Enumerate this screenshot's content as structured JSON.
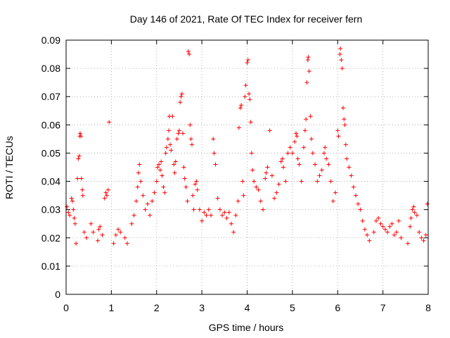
{
  "chart_data": {
    "type": "scatter",
    "title": "Day 146 of 2021, Rate Of TEC Index for receiver fern",
    "xlabel": "GPS time / hours",
    "ylabel": "ROTI / TECUs",
    "xlim": [
      0,
      8
    ],
    "ylim": [
      0,
      0.09
    ],
    "xticks": [
      "0",
      "1",
      "2",
      "3",
      "4",
      "5",
      "6",
      "7",
      "8"
    ],
    "yticks": [
      "0",
      "0.01",
      "0.02",
      "0.03",
      "0.04",
      "0.05",
      "0.06",
      "0.07",
      "0.08",
      "0.09"
    ],
    "grid": true,
    "legend": "none",
    "marker": "+",
    "series_color": "#ff0000",
    "series": [
      {
        "points": [
          [
            0.02,
            0.031
          ],
          [
            0.05,
            0.029
          ],
          [
            0.08,
            0.028
          ],
          [
            0.12,
            0.034
          ],
          [
            0.14,
            0.033
          ],
          [
            0.16,
            0.03
          ],
          [
            0.18,
            0.027
          ],
          [
            0.2,
            0.025
          ],
          [
            0.22,
            0.018
          ],
          [
            0.25,
            0.041
          ],
          [
            0.27,
            0.048
          ],
          [
            0.29,
            0.049
          ],
          [
            0.3,
            0.056
          ],
          [
            0.31,
            0.057
          ],
          [
            0.33,
            0.056
          ],
          [
            0.34,
            0.041
          ],
          [
            0.36,
            0.037
          ],
          [
            0.37,
            0.035
          ],
          [
            0.4,
            0.022
          ],
          [
            0.45,
            0.02
          ],
          [
            0.55,
            0.025
          ],
          [
            0.6,
            0.022
          ],
          [
            0.7,
            0.019
          ],
          [
            0.72,
            0.023
          ],
          [
            0.75,
            0.024
          ],
          [
            0.8,
            0.021
          ],
          [
            0.85,
            0.034
          ],
          [
            0.88,
            0.036
          ],
          [
            0.9,
            0.035
          ],
          [
            0.93,
            0.037
          ],
          [
            0.95,
            0.061
          ],
          [
            1.05,
            0.018
          ],
          [
            1.1,
            0.021
          ],
          [
            1.15,
            0.023
          ],
          [
            1.2,
            0.022
          ],
          [
            1.3,
            0.02
          ],
          [
            1.35,
            0.018
          ],
          [
            1.45,
            0.025
          ],
          [
            1.5,
            0.028
          ],
          [
            1.55,
            0.033
          ],
          [
            1.58,
            0.038
          ],
          [
            1.6,
            0.043
          ],
          [
            1.62,
            0.046
          ],
          [
            1.65,
            0.04
          ],
          [
            1.7,
            0.035
          ],
          [
            1.75,
            0.03
          ],
          [
            1.8,
            0.032
          ],
          [
            1.85,
            0.028
          ],
          [
            1.9,
            0.033
          ],
          [
            1.95,
            0.036
          ],
          [
            2.0,
            0.04
          ],
          [
            2.02,
            0.045
          ],
          [
            2.05,
            0.046
          ],
          [
            2.08,
            0.044
          ],
          [
            2.1,
            0.047
          ],
          [
            2.12,
            0.042
          ],
          [
            2.15,
            0.038
          ],
          [
            2.18,
            0.036
          ],
          [
            2.2,
            0.05
          ],
          [
            2.22,
            0.052
          ],
          [
            2.25,
            0.055
          ],
          [
            2.27,
            0.058
          ],
          [
            2.28,
            0.063
          ],
          [
            2.3,
            0.053
          ],
          [
            2.32,
            0.051
          ],
          [
            2.35,
            0.063
          ],
          [
            2.38,
            0.046
          ],
          [
            2.4,
            0.043
          ],
          [
            2.42,
            0.047
          ],
          [
            2.45,
            0.055
          ],
          [
            2.48,
            0.057
          ],
          [
            2.5,
            0.058
          ],
          [
            2.52,
            0.068
          ],
          [
            2.54,
            0.07
          ],
          [
            2.56,
            0.071
          ],
          [
            2.58,
            0.057
          ],
          [
            2.6,
            0.045
          ],
          [
            2.62,
            0.041
          ],
          [
            2.65,
            0.038
          ],
          [
            2.68,
            0.033
          ],
          [
            2.7,
            0.086
          ],
          [
            2.72,
            0.085
          ],
          [
            2.74,
            0.06
          ],
          [
            2.76,
            0.055
          ],
          [
            2.78,
            0.053
          ],
          [
            2.8,
            0.035
          ],
          [
            2.82,
            0.03
          ],
          [
            2.85,
            0.039
          ],
          [
            2.88,
            0.04
          ],
          [
            2.9,
            0.037
          ],
          [
            2.95,
            0.03
          ],
          [
            3.0,
            0.026
          ],
          [
            3.05,
            0.029
          ],
          [
            3.1,
            0.028
          ],
          [
            3.15,
            0.03
          ],
          [
            3.2,
            0.028
          ],
          [
            3.25,
            0.055
          ],
          [
            3.27,
            0.05
          ],
          [
            3.3,
            0.046
          ],
          [
            3.35,
            0.034
          ],
          [
            3.4,
            0.03
          ],
          [
            3.45,
            0.028
          ],
          [
            3.5,
            0.029
          ],
          [
            3.55,
            0.027
          ],
          [
            3.6,
            0.029
          ],
          [
            3.65,
            0.025
          ],
          [
            3.7,
            0.022
          ],
          [
            3.75,
            0.028
          ],
          [
            3.8,
            0.033
          ],
          [
            3.82,
            0.059
          ],
          [
            3.85,
            0.066
          ],
          [
            3.87,
            0.067
          ],
          [
            3.9,
            0.04
          ],
          [
            3.92,
            0.035
          ],
          [
            3.95,
            0.07
          ],
          [
            3.97,
            0.074
          ],
          [
            4.0,
            0.082
          ],
          [
            4.02,
            0.083
          ],
          [
            4.04,
            0.071
          ],
          [
            4.06,
            0.069
          ],
          [
            4.08,
            0.061
          ],
          [
            4.1,
            0.05
          ],
          [
            4.12,
            0.044
          ],
          [
            4.15,
            0.04
          ],
          [
            4.2,
            0.038
          ],
          [
            4.25,
            0.037
          ],
          [
            4.3,
            0.033
          ],
          [
            4.35,
            0.03
          ],
          [
            4.4,
            0.041
          ],
          [
            4.42,
            0.043
          ],
          [
            4.45,
            0.045
          ],
          [
            4.5,
            0.058
          ],
          [
            4.55,
            0.042
          ],
          [
            4.6,
            0.034
          ],
          [
            4.65,
            0.036
          ],
          [
            4.7,
            0.039
          ],
          [
            4.75,
            0.047
          ],
          [
            4.78,
            0.048
          ],
          [
            4.8,
            0.045
          ],
          [
            4.85,
            0.04
          ],
          [
            4.9,
            0.05
          ],
          [
            4.95,
            0.052
          ],
          [
            5.0,
            0.05
          ],
          [
            5.05,
            0.054
          ],
          [
            5.08,
            0.057
          ],
          [
            5.1,
            0.056
          ],
          [
            5.12,
            0.048
          ],
          [
            5.15,
            0.046
          ],
          [
            5.2,
            0.04
          ],
          [
            5.25,
            0.052
          ],
          [
            5.28,
            0.058
          ],
          [
            5.3,
            0.062
          ],
          [
            5.32,
            0.075
          ],
          [
            5.34,
            0.083
          ],
          [
            5.35,
            0.084
          ],
          [
            5.37,
            0.079
          ],
          [
            5.4,
            0.063
          ],
          [
            5.42,
            0.055
          ],
          [
            5.45,
            0.05
          ],
          [
            5.5,
            0.046
          ],
          [
            5.55,
            0.04
          ],
          [
            5.6,
            0.042
          ],
          [
            5.65,
            0.044
          ],
          [
            5.7,
            0.05
          ],
          [
            5.72,
            0.052
          ],
          [
            5.75,
            0.048
          ],
          [
            5.8,
            0.046
          ],
          [
            5.85,
            0.04
          ],
          [
            5.9,
            0.033
          ],
          [
            5.95,
            0.036
          ],
          [
            6.0,
            0.058
          ],
          [
            6.02,
            0.056
          ],
          [
            6.05,
            0.085
          ],
          [
            6.06,
            0.087
          ],
          [
            6.08,
            0.083
          ],
          [
            6.1,
            0.08
          ],
          [
            6.12,
            0.066
          ],
          [
            6.14,
            0.062
          ],
          [
            6.16,
            0.06
          ],
          [
            6.18,
            0.053
          ],
          [
            6.2,
            0.048
          ],
          [
            6.25,
            0.045
          ],
          [
            6.3,
            0.042
          ],
          [
            6.35,
            0.038
          ],
          [
            6.4,
            0.035
          ],
          [
            6.45,
            0.032
          ],
          [
            6.5,
            0.03
          ],
          [
            6.55,
            0.026
          ],
          [
            6.6,
            0.023
          ],
          [
            6.65,
            0.021
          ],
          [
            6.7,
            0.019
          ],
          [
            6.8,
            0.022
          ],
          [
            6.85,
            0.026
          ],
          [
            6.9,
            0.027
          ],
          [
            6.95,
            0.025
          ],
          [
            7.0,
            0.024
          ],
          [
            7.05,
            0.023
          ],
          [
            7.1,
            0.022
          ],
          [
            7.15,
            0.024
          ],
          [
            7.2,
            0.025
          ],
          [
            7.25,
            0.021
          ],
          [
            7.3,
            0.022
          ],
          [
            7.35,
            0.026
          ],
          [
            7.4,
            0.02
          ],
          [
            7.55,
            0.018
          ],
          [
            7.6,
            0.024
          ],
          [
            7.62,
            0.027
          ],
          [
            7.65,
            0.03
          ],
          [
            7.68,
            0.031
          ],
          [
            7.7,
            0.029
          ],
          [
            7.75,
            0.028
          ],
          [
            7.8,
            0.022
          ],
          [
            7.85,
            0.02
          ],
          [
            7.9,
            0.019
          ],
          [
            7.95,
            0.021
          ],
          [
            7.98,
            0.032
          ]
        ]
      }
    ]
  }
}
